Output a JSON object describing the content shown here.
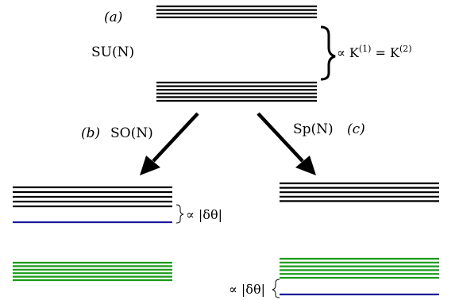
{
  "labels": {
    "a": "(a)",
    "b": "(b)",
    "c": "(c)",
    "su": "SU(N)",
    "so": "SO(N)",
    "sp": "Sp(N)"
  },
  "annotations": {
    "top_splitting": "∝ K",
    "top_sup1": "(1)",
    "top_equals": " = K",
    "top_sup2": "(2)",
    "so_splitting": "∝ |δθ|",
    "sp_splitting": "∝ |δθ|"
  },
  "colors": {
    "black_levels": "#000000",
    "green_levels": "#1a9a1a",
    "blue_level": "#1a1a9a",
    "arrow": "#000000"
  },
  "structure": {
    "su_top_group_levels": 4,
    "su_bottom_group_levels": 6,
    "so_black_levels": 5,
    "so_blue_levels": 1,
    "so_green_levels": 6,
    "sp_black_levels": 5,
    "sp_green_levels": 6,
    "sp_blue_levels": 1
  }
}
